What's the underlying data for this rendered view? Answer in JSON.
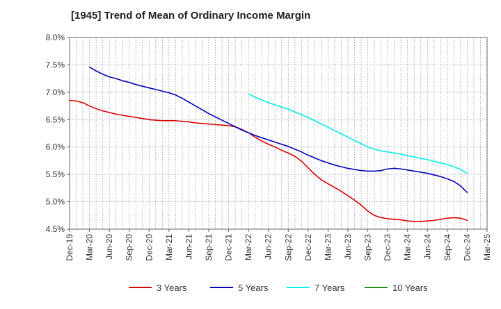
{
  "chart_data": {
    "type": "line",
    "title": "[1945]  Trend of Mean of Ordinary Income Margin",
    "xlabel": "",
    "ylabel": "",
    "ylim": [
      4.5,
      8.0
    ],
    "y_unit": "%",
    "y_ticks": [
      "4.5%",
      "5.0%",
      "5.5%",
      "6.0%",
      "6.5%",
      "7.0%",
      "7.5%",
      "8.0%"
    ],
    "x_ticks": [
      "Dec-19",
      "Mar-20",
      "Jun-20",
      "Sep-20",
      "Dec-20",
      "Mar-21",
      "Jun-21",
      "Sep-21",
      "Dec-21",
      "Mar-22",
      "Jun-22",
      "Sep-22",
      "Dec-22",
      "Mar-23",
      "Jun-23",
      "Sep-23",
      "Dec-23",
      "Mar-24",
      "Jun-24",
      "Sep-24",
      "Dec-24",
      "Mar-25"
    ],
    "grid": true,
    "legend_position": "bottom",
    "series": [
      {
        "name": "3 Years",
        "color": "#dd0000",
        "x": [
          "Dec-19",
          "Jan-20",
          "Feb-20",
          "Mar-20",
          "Apr-20",
          "May-20",
          "Jun-20",
          "Jul-20",
          "Aug-20",
          "Sep-20",
          "Oct-20",
          "Nov-20",
          "Dec-20",
          "Jan-21",
          "Feb-21",
          "Mar-21",
          "Apr-21",
          "May-21",
          "Jun-21",
          "Jul-21",
          "Aug-21",
          "Sep-21",
          "Oct-21",
          "Nov-21",
          "Dec-21",
          "Jan-22",
          "Feb-22",
          "Mar-22",
          "Apr-22",
          "May-22",
          "Jun-22",
          "Jul-22",
          "Aug-22",
          "Sep-22",
          "Oct-22",
          "Nov-22",
          "Dec-22",
          "Jan-23",
          "Feb-23",
          "Mar-23",
          "Apr-23",
          "May-23",
          "Jun-23",
          "Jul-23",
          "Aug-23",
          "Sep-23",
          "Oct-23",
          "Nov-23",
          "Dec-23",
          "Jan-24",
          "Feb-24",
          "Mar-24",
          "Apr-24",
          "May-24",
          "Jun-24",
          "Jul-24",
          "Aug-24",
          "Sep-24",
          "Oct-24",
          "Nov-24",
          "Dec-24"
        ],
        "values": [
          6.85,
          6.84,
          6.81,
          6.75,
          6.7,
          6.66,
          6.63,
          6.6,
          6.58,
          6.56,
          6.54,
          6.52,
          6.5,
          6.49,
          6.48,
          6.48,
          6.48,
          6.47,
          6.46,
          6.44,
          6.43,
          6.42,
          6.41,
          6.4,
          6.39,
          6.37,
          6.32,
          6.26,
          6.18,
          6.11,
          6.05,
          6.0,
          5.94,
          5.89,
          5.83,
          5.74,
          5.62,
          5.5,
          5.4,
          5.33,
          5.26,
          5.19,
          5.11,
          5.03,
          4.94,
          4.83,
          4.75,
          4.71,
          4.69,
          4.68,
          4.67,
          4.65,
          4.64,
          4.64,
          4.65,
          4.66,
          4.68,
          4.7,
          4.71,
          4.7,
          4.66
        ]
      },
      {
        "name": "5 Years",
        "color": "#0000bb",
        "x": [
          "Mar-20",
          "Apr-20",
          "May-20",
          "Jun-20",
          "Jul-20",
          "Aug-20",
          "Sep-20",
          "Oct-20",
          "Nov-20",
          "Dec-20",
          "Jan-21",
          "Feb-21",
          "Mar-21",
          "Apr-21",
          "May-21",
          "Jun-21",
          "Jul-21",
          "Aug-21",
          "Sep-21",
          "Oct-21",
          "Nov-21",
          "Dec-21",
          "Jan-22",
          "Feb-22",
          "Mar-22",
          "Apr-22",
          "May-22",
          "Jun-22",
          "Jul-22",
          "Aug-22",
          "Sep-22",
          "Oct-22",
          "Nov-22",
          "Dec-22",
          "Jan-23",
          "Feb-23",
          "Mar-23",
          "Apr-23",
          "May-23",
          "Jun-23",
          "Jul-23",
          "Aug-23",
          "Sep-23",
          "Oct-23",
          "Nov-23",
          "Dec-23",
          "Jan-24",
          "Feb-24",
          "Mar-24",
          "Apr-24",
          "May-24",
          "Jun-24",
          "Jul-24",
          "Aug-24",
          "Sep-24",
          "Oct-24",
          "Nov-24",
          "Dec-24"
        ],
        "values": [
          7.46,
          7.39,
          7.33,
          7.28,
          7.25,
          7.21,
          7.18,
          7.14,
          7.11,
          7.08,
          7.05,
          7.02,
          6.99,
          6.95,
          6.89,
          6.82,
          6.75,
          6.68,
          6.61,
          6.55,
          6.49,
          6.43,
          6.37,
          6.31,
          6.26,
          6.21,
          6.17,
          6.13,
          6.09,
          6.05,
          6.01,
          5.96,
          5.91,
          5.85,
          5.8,
          5.75,
          5.71,
          5.67,
          5.64,
          5.61,
          5.59,
          5.57,
          5.56,
          5.56,
          5.57,
          5.6,
          5.61,
          5.6,
          5.58,
          5.56,
          5.54,
          5.52,
          5.49,
          5.46,
          5.42,
          5.37,
          5.29,
          5.17
        ]
      },
      {
        "name": "7 Years",
        "color": "#00eeee",
        "x": [
          "Mar-22",
          "Apr-22",
          "May-22",
          "Jun-22",
          "Jul-22",
          "Aug-22",
          "Sep-22",
          "Oct-22",
          "Nov-22",
          "Dec-22",
          "Jan-23",
          "Feb-23",
          "Mar-23",
          "Apr-23",
          "May-23",
          "Jun-23",
          "Jul-23",
          "Aug-23",
          "Sep-23",
          "Oct-23",
          "Nov-23",
          "Dec-23",
          "Jan-24",
          "Feb-24",
          "Mar-24",
          "Apr-24",
          "May-24",
          "Jun-24",
          "Jul-24",
          "Aug-24",
          "Sep-24",
          "Oct-24",
          "Nov-24",
          "Dec-24"
        ],
        "values": [
          6.97,
          6.91,
          6.86,
          6.81,
          6.77,
          6.73,
          6.69,
          6.64,
          6.59,
          6.54,
          6.48,
          6.42,
          6.36,
          6.3,
          6.24,
          6.18,
          6.12,
          6.06,
          6.0,
          5.96,
          5.93,
          5.91,
          5.89,
          5.87,
          5.84,
          5.82,
          5.79,
          5.77,
          5.74,
          5.71,
          5.68,
          5.64,
          5.59,
          5.52
        ]
      },
      {
        "name": "10 Years",
        "color": "#228b22",
        "x": [],
        "values": []
      }
    ]
  }
}
